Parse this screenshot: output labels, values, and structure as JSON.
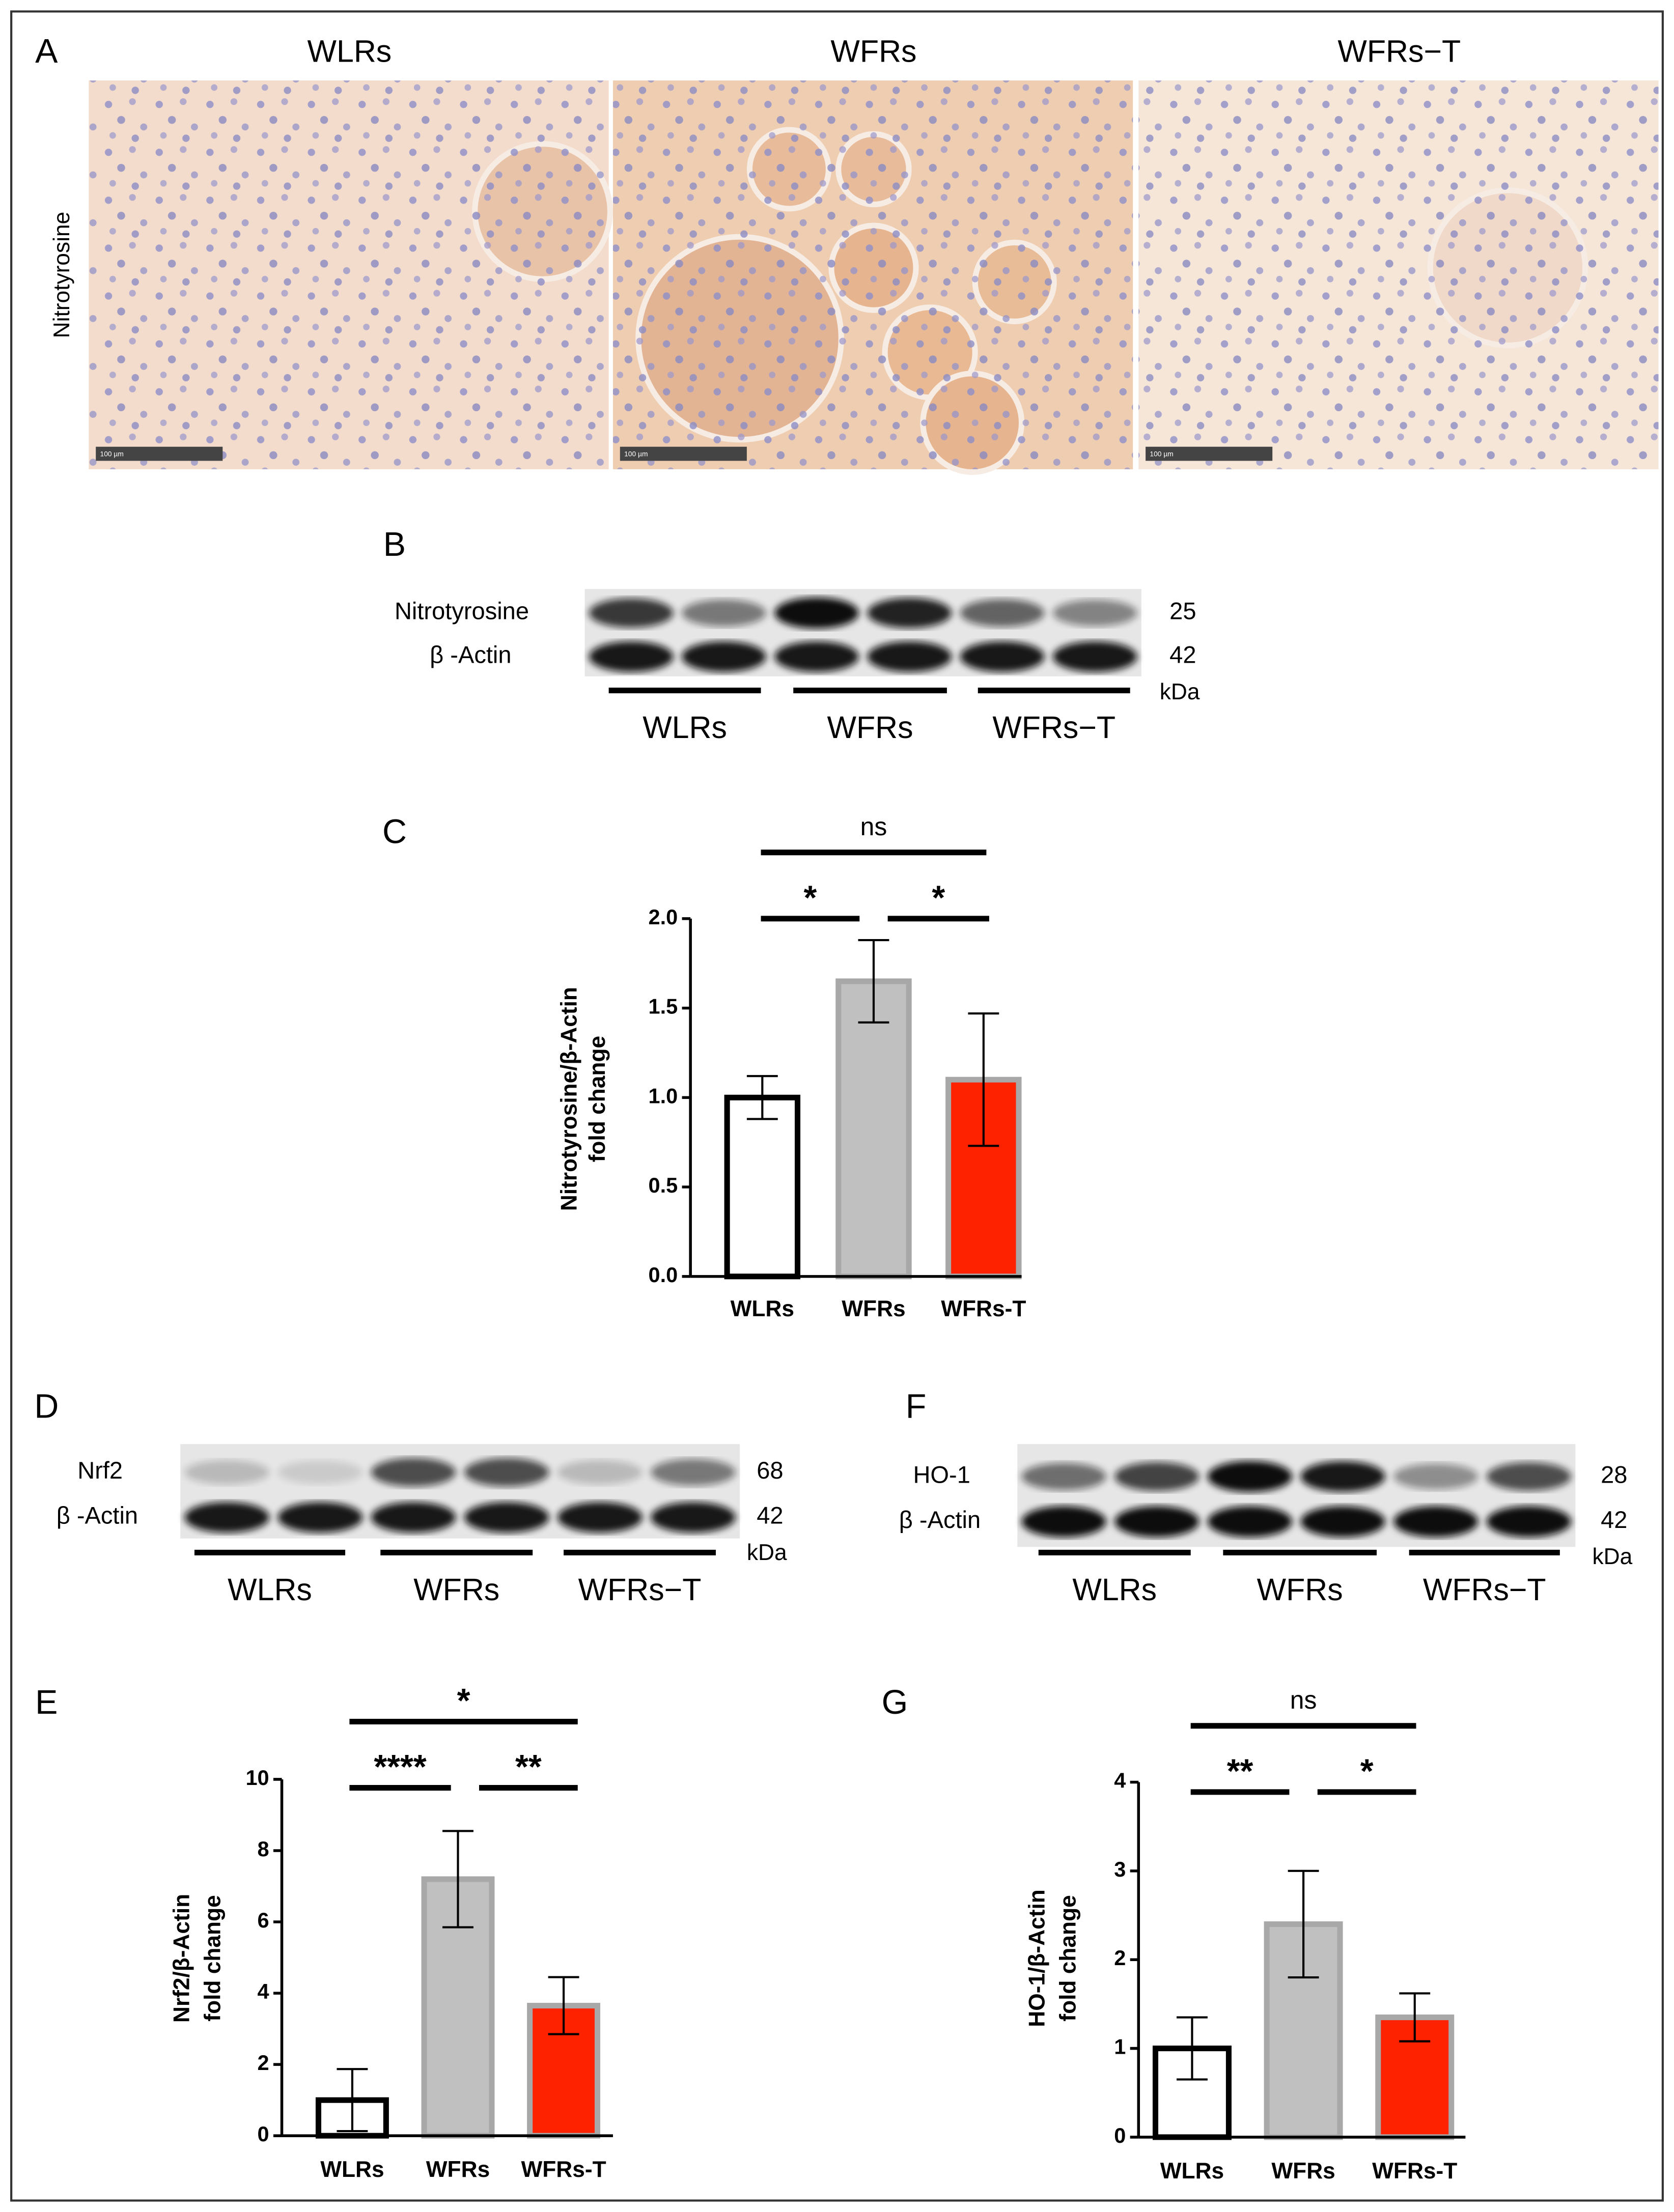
{
  "panel_labels": [
    "A",
    "B",
    "C",
    "D",
    "E",
    "F",
    "G"
  ],
  "histology": {
    "groups": [
      "WLRs",
      "WFRs",
      "WFRs−T"
    ],
    "stain": "Nitrotyrosine",
    "scale_bar": "100 µm"
  },
  "blots": [
    {
      "rows": [
        {
          "name": "Nitrotyrosine",
          "kda": "25"
        },
        {
          "name": "β -Actin",
          "kda": "42"
        }
      ],
      "unit": "kDa",
      "groups": [
        "WLRs",
        "WFRs",
        "WFRs−T"
      ]
    },
    {
      "rows": [
        {
          "name": "Nrf2",
          "kda": "68"
        },
        {
          "name": "β -Actin",
          "kda": "42"
        }
      ],
      "unit": "kDa",
      "groups": [
        "WLRs",
        "WFRs",
        "WFRs−T"
      ]
    },
    {
      "rows": [
        {
          "name": "HO-1",
          "kda": "28"
        },
        {
          "name": "β -Actin",
          "kda": "42"
        }
      ],
      "unit": "kDa",
      "groups": [
        "WLRs",
        "WFRs",
        "WFRs−T"
      ]
    }
  ],
  "chart_data": [
    {
      "type": "bar",
      "ylabel": [
        "Nitrotyrosine/β-Actin",
        "fold change"
      ],
      "categories": [
        "WLRs",
        "WFRs",
        "WFRs-T"
      ],
      "values": [
        1.0,
        1.65,
        1.1
      ],
      "errors": [
        0.12,
        0.23,
        0.37
      ],
      "colors": [
        "#ffffff",
        "#c0c0c0",
        "#ff2200"
      ],
      "edge_colors": [
        "#000000",
        "#a8a8a8",
        "#a8a8a8"
      ],
      "ylim": [
        0,
        2
      ],
      "yticks": [
        {
          "value": 0,
          "label": "0.0"
        },
        {
          "value": 0.5,
          "label": "0.5"
        },
        {
          "value": 1,
          "label": "1.0"
        },
        {
          "value": 1.5,
          "label": "1.5"
        },
        {
          "value": 2,
          "label": "2.0"
        }
      ],
      "significance": [
        "ns",
        "*",
        "*"
      ]
    },
    {
      "type": "bar",
      "ylabel": [
        "Nrf2/β-Actin",
        "fold change"
      ],
      "categories": [
        "WLRs",
        "WFRs",
        "WFRs-T"
      ],
      "values": [
        1.0,
        7.2,
        3.65
      ],
      "errors": [
        0.87,
        1.35,
        0.8
      ],
      "colors": [
        "#ffffff",
        "#c0c0c0",
        "#ff2200"
      ],
      "edge_colors": [
        "#000000",
        "#a8a8a8",
        "#a8a8a8"
      ],
      "ylim": [
        0,
        10
      ],
      "yticks": [
        0,
        2,
        4,
        6,
        8,
        10
      ],
      "significance": [
        "*",
        "****",
        "**"
      ]
    },
    {
      "type": "bar",
      "ylabel": [
        "HO-1/β-Actin",
        "fold change"
      ],
      "categories": [
        "WLRs",
        "WFRs",
        "WFRs-T"
      ],
      "values": [
        1.0,
        2.4,
        1.35
      ],
      "errors": [
        0.35,
        0.6,
        0.27
      ],
      "colors": [
        "#ffffff",
        "#c0c0c0",
        "#ff2200"
      ],
      "edge_colors": [
        "#000000",
        "#a8a8a8",
        "#a8a8a8"
      ],
      "ylim": [
        0,
        4
      ],
      "yticks": [
        0,
        1,
        2,
        3,
        4
      ],
      "significance": [
        "ns",
        "**",
        "*"
      ]
    }
  ]
}
